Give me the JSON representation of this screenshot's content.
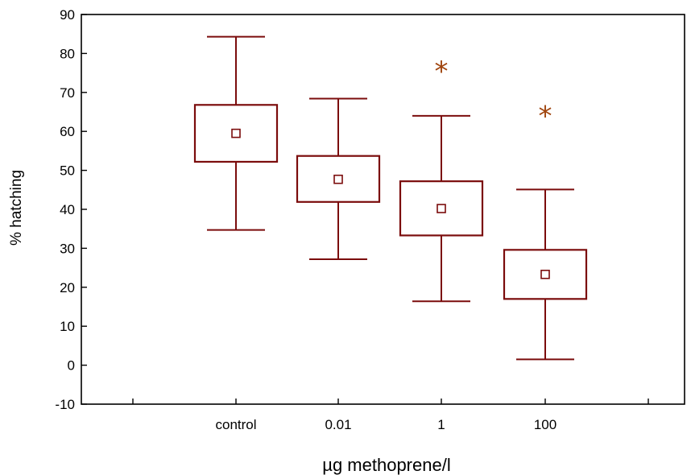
{
  "chart_data": {
    "type": "boxplot",
    "title": "",
    "xlabel": "µg methoprene/l",
    "ylabel": "% hatching",
    "ylim": [
      -10,
      90
    ],
    "yticks": [
      -10,
      0,
      10,
      20,
      30,
      40,
      50,
      60,
      70,
      80,
      90
    ],
    "categories": [
      "control",
      "0.01",
      "1",
      "100"
    ],
    "series": [
      {
        "category": "control",
        "center": 59.5,
        "box_low": 52.2,
        "box_high": 66.8,
        "whisker_low": 34.7,
        "whisker_high": 84.3,
        "significant": false
      },
      {
        "category": "0.01",
        "center": 47.7,
        "box_low": 41.9,
        "box_high": 53.7,
        "whisker_low": 27.2,
        "whisker_high": 68.4,
        "significant": false
      },
      {
        "category": "1",
        "center": 40.2,
        "box_low": 33.3,
        "box_high": 47.2,
        "whisker_low": 16.4,
        "whisker_high": 64.0,
        "significant": true,
        "marker_value": 76.0
      },
      {
        "category": "100",
        "center": 23.3,
        "box_low": 17.0,
        "box_high": 29.6,
        "whisker_low": 1.5,
        "whisker_high": 45.1,
        "significant": true,
        "marker_value": 64.5
      }
    ],
    "significance_symbol": "*",
    "colors": {
      "box": "#7b0c0c",
      "marker": "#a0450e",
      "axis": "#000000"
    },
    "grid": false,
    "legend": "none"
  }
}
